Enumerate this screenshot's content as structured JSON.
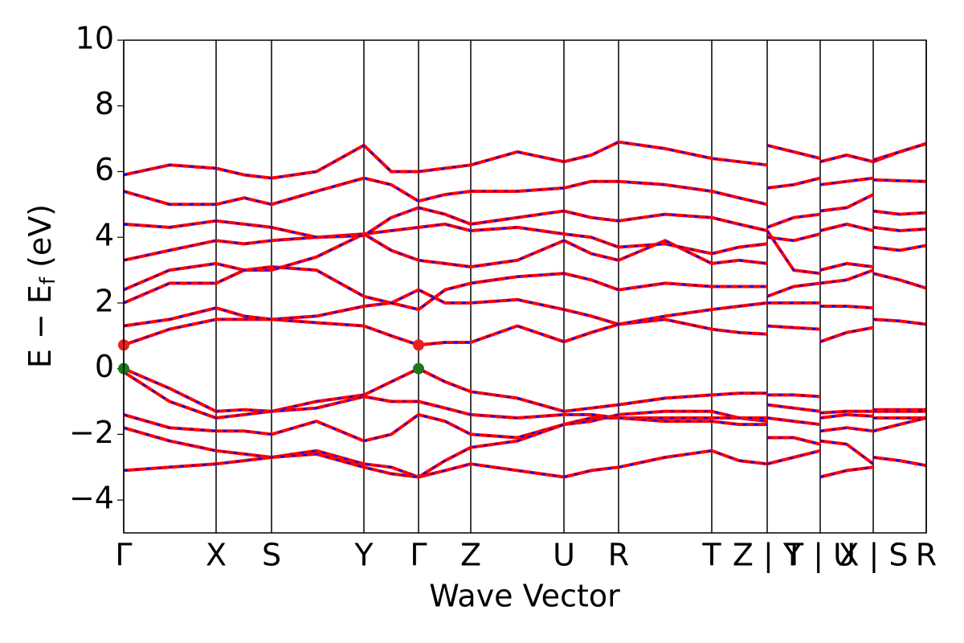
{
  "chart_data": {
    "type": "line",
    "xlabel": "Wave Vector",
    "ylabel": [
      "E − E",
      "f",
      " (eV)"
    ],
    "xlim": [
      0,
      9.99
    ],
    "xticks": [
      {
        "value": 0,
        "label": "Γ"
      },
      {
        "value": 1.15,
        "label": "X"
      },
      {
        "value": 1.84,
        "label": "S"
      },
      {
        "value": 2.99,
        "label": "Y"
      },
      {
        "value": 3.67,
        "label": "Γ"
      },
      {
        "value": 4.32,
        "label": "Z"
      },
      {
        "value": 5.48,
        "label": "U"
      },
      {
        "value": 6.16,
        "label": "R"
      },
      {
        "value": 7.32,
        "label": "T"
      },
      {
        "value": 8.01,
        "label": "Z | Y"
      },
      {
        "value": 8.67,
        "label": "T | U"
      },
      {
        "value": 9.33,
        "label": "X | S"
      },
      {
        "value": 9.99,
        "label": "R"
      }
    ],
    "ylim": [
      -5,
      10
    ],
    "yticks": [
      {
        "value": -4,
        "label": "−4"
      },
      {
        "value": -2,
        "label": "−2"
      },
      0,
      2,
      4,
      6,
      8,
      10
    ],
    "line_color": "#ff0000",
    "dash_color": "#0000ff",
    "x": [
      0,
      0.57,
      1.15,
      1.5,
      1.84,
      2.4,
      2.99,
      3.33,
      3.67,
      4.0,
      4.32,
      4.9,
      5.48,
      5.82,
      6.16,
      6.74,
      7.32,
      7.66,
      8.01,
      8.01,
      8.01,
      8.34,
      8.67,
      8.67,
      8.67,
      9.0,
      9.33,
      9.33,
      9.33,
      9.66,
      9.99
    ],
    "series": [
      {
        "values": [
          0,
          -0.6,
          -1.3,
          -1.25,
          -1.3,
          -1.0,
          -0.8,
          -0.4,
          0,
          -0.4,
          -0.7,
          -0.9,
          -1.3,
          -1.2,
          -1.1,
          -0.9,
          -0.8,
          -0.75,
          -0.75,
          null,
          -0.8,
          -0.8,
          -0.85,
          null,
          -1.35,
          -1.3,
          -1.3,
          null,
          -1.25,
          -1.25,
          -1.25
        ]
      },
      {
        "values": [
          -0.1,
          -1.0,
          -1.5,
          -1.4,
          -1.3,
          -1.2,
          -0.85,
          -1.0,
          -1.0,
          -1.2,
          -1.4,
          -1.5,
          -1.4,
          -1.4,
          -1.5,
          -1.5,
          -1.5,
          -1.5,
          -1.6,
          null,
          -1.1,
          -1.2,
          -1.3,
          null,
          -1.5,
          -1.4,
          -1.45,
          null,
          -1.5,
          -1.5,
          -1.5
        ]
      },
      {
        "values": [
          -1.4,
          -1.8,
          -1.9,
          -1.9,
          -2.0,
          -1.6,
          -2.2,
          -2.0,
          -1.4,
          -1.6,
          -2.0,
          -2.1,
          -1.7,
          -1.5,
          -1.5,
          -1.6,
          -1.6,
          -1.7,
          -1.7,
          null,
          -2.1,
          -2.1,
          -2.3,
          null,
          -1.9,
          -1.8,
          -1.9,
          null,
          -1.9,
          -1.7,
          -1.5
        ]
      },
      {
        "values": [
          -1.8,
          -2.2,
          -2.5,
          -2.6,
          -2.7,
          -2.5,
          -2.9,
          -3.0,
          -3.3,
          -3.1,
          -2.9,
          -3.1,
          -3.3,
          -3.1,
          -3.0,
          -2.7,
          -2.5,
          -2.8,
          -2.9,
          null,
          -2.9,
          -2.7,
          -2.5,
          null,
          -3.3,
          -3.1,
          -3.0,
          null,
          -2.7,
          -2.8,
          -2.95
        ]
      },
      {
        "values": [
          -3.1,
          -3.0,
          -2.9,
          -2.8,
          -2.7,
          -2.6,
          -3.0,
          -3.2,
          -3.3,
          -2.8,
          -2.4,
          -2.2,
          -1.7,
          -1.6,
          -1.4,
          -1.3,
          -1.3,
          -1.5,
          -1.5,
          null,
          -1.5,
          -1.6,
          -1.7,
          null,
          -2.2,
          -2.3,
          -2.9,
          null,
          -1.3,
          -1.3,
          -1.3
        ]
      },
      {
        "values": [
          0.72,
          1.2,
          1.5,
          1.5,
          1.5,
          1.4,
          1.3,
          1.0,
          0.72,
          0.8,
          0.8,
          1.3,
          0.82,
          1.1,
          1.35,
          1.5,
          1.2,
          1.1,
          1.05,
          null,
          1.3,
          1.25,
          1.2,
          null,
          0.82,
          1.1,
          1.25,
          null,
          1.5,
          1.45,
          1.35
        ]
      },
      {
        "values": [
          1.3,
          1.5,
          1.85,
          1.6,
          1.5,
          1.6,
          1.9,
          2.0,
          2.4,
          2.0,
          2.0,
          2.1,
          1.8,
          1.6,
          1.35,
          1.6,
          1.8,
          1.9,
          2.0,
          null,
          2.0,
          2.0,
          2.0,
          null,
          1.9,
          1.9,
          1.85,
          null,
          2.9,
          2.7,
          2.45
        ]
      },
      {
        "values": [
          2.0,
          2.6,
          2.6,
          3.0,
          3.1,
          3.0,
          2.2,
          2.0,
          1.8,
          2.4,
          2.6,
          2.8,
          2.9,
          2.7,
          2.4,
          2.6,
          2.5,
          2.5,
          2.5,
          null,
          2.2,
          2.5,
          2.6,
          null,
          2.6,
          2.7,
          3.0,
          null,
          3.7,
          3.6,
          3.75
        ]
      },
      {
        "values": [
          2.4,
          3.0,
          3.2,
          3.0,
          3.0,
          3.4,
          4.1,
          3.6,
          3.3,
          3.2,
          3.1,
          3.3,
          3.9,
          3.5,
          3.3,
          3.9,
          3.2,
          3.3,
          3.2,
          null,
          4.2,
          3.0,
          2.9,
          null,
          3.0,
          3.2,
          3.1,
          null,
          4.3,
          4.2,
          4.25
        ]
      },
      {
        "values": [
          3.3,
          3.6,
          3.9,
          3.8,
          3.9,
          4.0,
          4.1,
          4.2,
          4.3,
          4.4,
          4.2,
          4.3,
          4.1,
          4.0,
          3.7,
          3.8,
          3.5,
          3.7,
          3.8,
          null,
          4.0,
          3.9,
          4.1,
          null,
          4.2,
          4.4,
          4.2,
          null,
          4.8,
          4.7,
          4.75
        ]
      },
      {
        "values": [
          4.4,
          4.3,
          4.5,
          4.4,
          4.3,
          4.0,
          4.05,
          4.6,
          4.9,
          4.7,
          4.4,
          4.6,
          4.8,
          4.6,
          4.5,
          4.7,
          4.6,
          4.4,
          4.2,
          null,
          4.3,
          4.6,
          4.7,
          null,
          4.8,
          4.9,
          5.3,
          null,
          5.75,
          5.72,
          5.7
        ]
      },
      {
        "values": [
          5.4,
          5.0,
          5.0,
          5.2,
          5.0,
          5.4,
          5.8,
          5.6,
          5.1,
          5.3,
          5.4,
          5.4,
          5.5,
          5.7,
          5.7,
          5.6,
          5.4,
          5.2,
          5.0,
          null,
          5.5,
          5.6,
          5.8,
          null,
          5.6,
          5.7,
          5.8,
          null,
          6.3,
          6.6,
          6.85
        ]
      },
      {
        "values": [
          5.9,
          6.2,
          6.1,
          5.9,
          5.8,
          6.0,
          6.8,
          6.0,
          6.0,
          6.1,
          6.2,
          6.6,
          6.3,
          6.5,
          6.9,
          6.7,
          6.4,
          6.3,
          6.2,
          null,
          6.8,
          6.6,
          6.4,
          null,
          6.3,
          6.5,
          6.3,
          null,
          6.35,
          6.6,
          6.85
        ]
      }
    ],
    "points": [
      {
        "x": 0,
        "y": 0.72,
        "color": "#e8201e"
      },
      {
        "x": 3.67,
        "y": 0.72,
        "color": "#e8201e"
      },
      {
        "x": 0,
        "y": 0,
        "color": "#1a7a1a"
      },
      {
        "x": 3.67,
        "y": 0,
        "color": "#1a7a1a"
      }
    ]
  }
}
